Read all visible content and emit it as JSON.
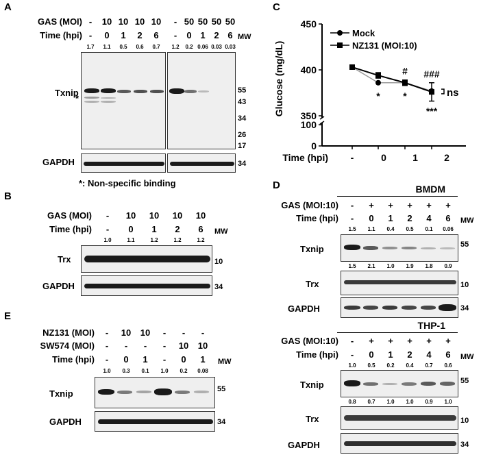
{
  "panelA": {
    "letter": "A",
    "gas_label": "GAS (MOI)",
    "time_label": "Time (hpi)",
    "mw_label": "MW",
    "left": {
      "gas": [
        "-",
        "10",
        "10",
        "10",
        "10"
      ],
      "time": [
        "-",
        "0",
        "1",
        "2",
        "6"
      ],
      "dens": [
        "1.7",
        "1.1",
        "0.5",
        "0.6",
        "0.7"
      ]
    },
    "right": {
      "gas": [
        "-",
        "50",
        "50",
        "50",
        "50"
      ],
      "time": [
        "-",
        "0",
        "1",
        "2",
        "6"
      ],
      "dens": [
        "1.2",
        "0.2",
        "0.06",
        "0.03",
        "0.03"
      ]
    },
    "txnip_label": "Txnip",
    "star_label": "*",
    "gapdh_label": "GAPDH",
    "mw": [
      "55",
      "43",
      "34",
      "26",
      "17"
    ],
    "gapdh_mw": "34",
    "note": "*: Non-specific binding"
  },
  "panelB": {
    "letter": "B",
    "gas_label": "GAS (MOI)",
    "time_label": "Time (hpi)",
    "mw_label": "MW",
    "gas": [
      "-",
      "10",
      "10",
      "10",
      "10"
    ],
    "time": [
      "-",
      "0",
      "1",
      "2",
      "6"
    ],
    "dens": [
      "1.0",
      "1.1",
      "1.2",
      "1.2",
      "1.2"
    ],
    "trx_label": "Trx",
    "gapdh_label": "GAPDH",
    "trx_mw": "10",
    "gapdh_mw": "34"
  },
  "panelC": {
    "letter": "C",
    "chart_data": {
      "type": "line",
      "ylabel": "Glucose (mg/dL)",
      "xlabel": "Time (hpi)",
      "categories": [
        "-",
        "0",
        "1",
        "2"
      ],
      "yticks": [
        "450",
        "400",
        "350",
        "100",
        "0"
      ],
      "series": [
        {
          "name": "Mock",
          "values": [
            403,
            386,
            386,
            377
          ],
          "color": "#999999",
          "marker": "circle"
        },
        {
          "name": "NZ131 (MOI:10)",
          "values": [
            403,
            394,
            386,
            376
          ],
          "err": [
            0,
            3,
            3,
            10
          ],
          "color": "#000000",
          "marker": "square"
        }
      ],
      "annotations_below": [
        "*",
        "*",
        "***"
      ],
      "annotations_above": [
        "#",
        "###"
      ],
      "ns_label": "ns"
    }
  },
  "panelD": {
    "letter": "D",
    "bmdm": {
      "title": "BMDM",
      "gas_label": "GAS (MOI:10)",
      "time_label": "Time (hpi)",
      "mw_label": "MW",
      "gas": [
        "-",
        "+",
        "+",
        "+",
        "+",
        "+"
      ],
      "time": [
        "-",
        "0",
        "1",
        "2",
        "4",
        "6"
      ],
      "txnip_dens": [
        "1.5",
        "1.1",
        "0.4",
        "0.5",
        "0.1",
        "0.06"
      ],
      "trx_dens": [
        "1.5",
        "2.1",
        "1.0",
        "1.9",
        "1.8",
        "0.9"
      ],
      "txnip_label": "Txnip",
      "trx_label": "Trx",
      "gapdh_label": "GAPDH",
      "txnip_mw": "55",
      "trx_mw": "10",
      "gapdh_mw": "34"
    },
    "thp1": {
      "title": "THP-1",
      "gas_label": "GAS (MOI:10)",
      "time_label": "Time (hpi)",
      "mw_label": "MW",
      "gas": [
        "-",
        "+",
        "+",
        "+",
        "+",
        "+"
      ],
      "time": [
        "-",
        "0",
        "1",
        "2",
        "4",
        "6"
      ],
      "txnip_dens": [
        "1.0",
        "0.5",
        "0.2",
        "0.4",
        "0.7",
        "0.6"
      ],
      "trx_dens": [
        "0.8",
        "0.7",
        "1.0",
        "1.0",
        "0.9",
        "1.0"
      ],
      "txnip_label": "Txnip",
      "trx_label": "Trx",
      "gapdh_label": "GAPDH",
      "txnip_mw": "55",
      "trx_mw": "10",
      "gapdh_mw": "34"
    }
  },
  "panelE": {
    "letter": "E",
    "nz_label": "NZ131 (MOI)",
    "sw_label": "SW574 (MOI)",
    "time_label": "Time (hpi)",
    "mw_label": "MW",
    "nz": [
      "-",
      "10",
      "10",
      "-",
      "-",
      "-"
    ],
    "sw": [
      "-",
      "-",
      "-",
      "-",
      "10",
      "10"
    ],
    "time": [
      "-",
      "0",
      "1",
      "-",
      "0",
      "1"
    ],
    "dens": [
      "1.0",
      "0.3",
      "0.1",
      "1.0",
      "0.2",
      "0.08"
    ],
    "txnip_label": "Txnip",
    "gapdh_label": "GAPDH",
    "txnip_mw": "55",
    "gapdh_mw": "34"
  }
}
